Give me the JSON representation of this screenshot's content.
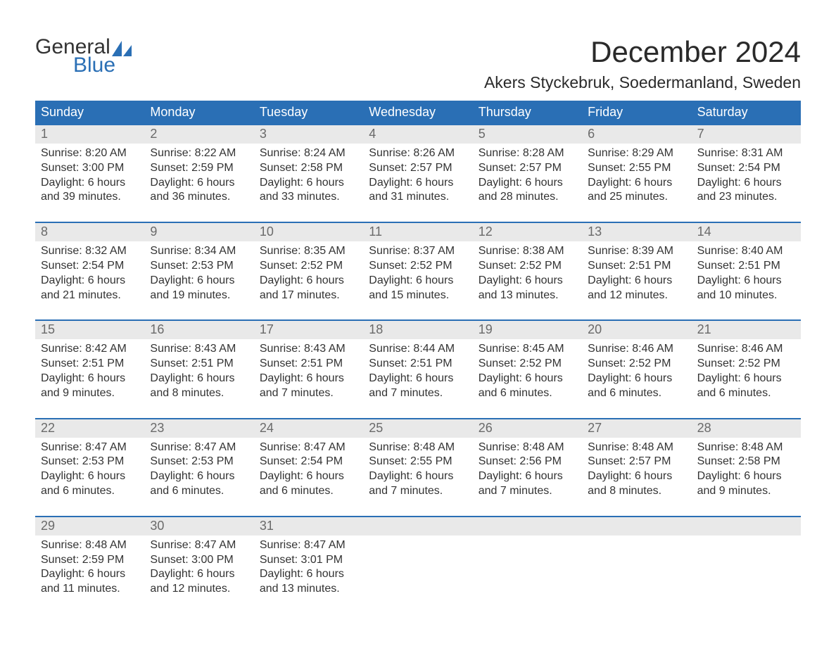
{
  "colors": {
    "header_blue": "#2a6fb5",
    "daynum_bg": "#e9e9e9",
    "text": "#333333",
    "daynum_text": "#6a6a6a",
    "background": "#ffffff"
  },
  "typography": {
    "month_title_fontsize": 42,
    "location_fontsize": 23,
    "weekday_fontsize": 18,
    "daynum_fontsize": 18,
    "body_fontsize": 16,
    "logo_fontsize": 30
  },
  "logo": {
    "word1": "General",
    "word2": "Blue"
  },
  "title": "December 2024",
  "location": "Akers Styckebruk, Soedermanland, Sweden",
  "weekdays": [
    "Sunday",
    "Monday",
    "Tuesday",
    "Wednesday",
    "Thursday",
    "Friday",
    "Saturday"
  ],
  "weeks": [
    [
      {
        "num": "1",
        "sunrise": "Sunrise: 8:20 AM",
        "sunset": "Sunset: 3:00 PM",
        "daylight1": "Daylight: 6 hours",
        "daylight2": "and 39 minutes."
      },
      {
        "num": "2",
        "sunrise": "Sunrise: 8:22 AM",
        "sunset": "Sunset: 2:59 PM",
        "daylight1": "Daylight: 6 hours",
        "daylight2": "and 36 minutes."
      },
      {
        "num": "3",
        "sunrise": "Sunrise: 8:24 AM",
        "sunset": "Sunset: 2:58 PM",
        "daylight1": "Daylight: 6 hours",
        "daylight2": "and 33 minutes."
      },
      {
        "num": "4",
        "sunrise": "Sunrise: 8:26 AM",
        "sunset": "Sunset: 2:57 PM",
        "daylight1": "Daylight: 6 hours",
        "daylight2": "and 31 minutes."
      },
      {
        "num": "5",
        "sunrise": "Sunrise: 8:28 AM",
        "sunset": "Sunset: 2:57 PM",
        "daylight1": "Daylight: 6 hours",
        "daylight2": "and 28 minutes."
      },
      {
        "num": "6",
        "sunrise": "Sunrise: 8:29 AM",
        "sunset": "Sunset: 2:55 PM",
        "daylight1": "Daylight: 6 hours",
        "daylight2": "and 25 minutes."
      },
      {
        "num": "7",
        "sunrise": "Sunrise: 8:31 AM",
        "sunset": "Sunset: 2:54 PM",
        "daylight1": "Daylight: 6 hours",
        "daylight2": "and 23 minutes."
      }
    ],
    [
      {
        "num": "8",
        "sunrise": "Sunrise: 8:32 AM",
        "sunset": "Sunset: 2:54 PM",
        "daylight1": "Daylight: 6 hours",
        "daylight2": "and 21 minutes."
      },
      {
        "num": "9",
        "sunrise": "Sunrise: 8:34 AM",
        "sunset": "Sunset: 2:53 PM",
        "daylight1": "Daylight: 6 hours",
        "daylight2": "and 19 minutes."
      },
      {
        "num": "10",
        "sunrise": "Sunrise: 8:35 AM",
        "sunset": "Sunset: 2:52 PM",
        "daylight1": "Daylight: 6 hours",
        "daylight2": "and 17 minutes."
      },
      {
        "num": "11",
        "sunrise": "Sunrise: 8:37 AM",
        "sunset": "Sunset: 2:52 PM",
        "daylight1": "Daylight: 6 hours",
        "daylight2": "and 15 minutes."
      },
      {
        "num": "12",
        "sunrise": "Sunrise: 8:38 AM",
        "sunset": "Sunset: 2:52 PM",
        "daylight1": "Daylight: 6 hours",
        "daylight2": "and 13 minutes."
      },
      {
        "num": "13",
        "sunrise": "Sunrise: 8:39 AM",
        "sunset": "Sunset: 2:51 PM",
        "daylight1": "Daylight: 6 hours",
        "daylight2": "and 12 minutes."
      },
      {
        "num": "14",
        "sunrise": "Sunrise: 8:40 AM",
        "sunset": "Sunset: 2:51 PM",
        "daylight1": "Daylight: 6 hours",
        "daylight2": "and 10 minutes."
      }
    ],
    [
      {
        "num": "15",
        "sunrise": "Sunrise: 8:42 AM",
        "sunset": "Sunset: 2:51 PM",
        "daylight1": "Daylight: 6 hours",
        "daylight2": "and 9 minutes."
      },
      {
        "num": "16",
        "sunrise": "Sunrise: 8:43 AM",
        "sunset": "Sunset: 2:51 PM",
        "daylight1": "Daylight: 6 hours",
        "daylight2": "and 8 minutes."
      },
      {
        "num": "17",
        "sunrise": "Sunrise: 8:43 AM",
        "sunset": "Sunset: 2:51 PM",
        "daylight1": "Daylight: 6 hours",
        "daylight2": "and 7 minutes."
      },
      {
        "num": "18",
        "sunrise": "Sunrise: 8:44 AM",
        "sunset": "Sunset: 2:51 PM",
        "daylight1": "Daylight: 6 hours",
        "daylight2": "and 7 minutes."
      },
      {
        "num": "19",
        "sunrise": "Sunrise: 8:45 AM",
        "sunset": "Sunset: 2:52 PM",
        "daylight1": "Daylight: 6 hours",
        "daylight2": "and 6 minutes."
      },
      {
        "num": "20",
        "sunrise": "Sunrise: 8:46 AM",
        "sunset": "Sunset: 2:52 PM",
        "daylight1": "Daylight: 6 hours",
        "daylight2": "and 6 minutes."
      },
      {
        "num": "21",
        "sunrise": "Sunrise: 8:46 AM",
        "sunset": "Sunset: 2:52 PM",
        "daylight1": "Daylight: 6 hours",
        "daylight2": "and 6 minutes."
      }
    ],
    [
      {
        "num": "22",
        "sunrise": "Sunrise: 8:47 AM",
        "sunset": "Sunset: 2:53 PM",
        "daylight1": "Daylight: 6 hours",
        "daylight2": "and 6 minutes."
      },
      {
        "num": "23",
        "sunrise": "Sunrise: 8:47 AM",
        "sunset": "Sunset: 2:53 PM",
        "daylight1": "Daylight: 6 hours",
        "daylight2": "and 6 minutes."
      },
      {
        "num": "24",
        "sunrise": "Sunrise: 8:47 AM",
        "sunset": "Sunset: 2:54 PM",
        "daylight1": "Daylight: 6 hours",
        "daylight2": "and 6 minutes."
      },
      {
        "num": "25",
        "sunrise": "Sunrise: 8:48 AM",
        "sunset": "Sunset: 2:55 PM",
        "daylight1": "Daylight: 6 hours",
        "daylight2": "and 7 minutes."
      },
      {
        "num": "26",
        "sunrise": "Sunrise: 8:48 AM",
        "sunset": "Sunset: 2:56 PM",
        "daylight1": "Daylight: 6 hours",
        "daylight2": "and 7 minutes."
      },
      {
        "num": "27",
        "sunrise": "Sunrise: 8:48 AM",
        "sunset": "Sunset: 2:57 PM",
        "daylight1": "Daylight: 6 hours",
        "daylight2": "and 8 minutes."
      },
      {
        "num": "28",
        "sunrise": "Sunrise: 8:48 AM",
        "sunset": "Sunset: 2:58 PM",
        "daylight1": "Daylight: 6 hours",
        "daylight2": "and 9 minutes."
      }
    ],
    [
      {
        "num": "29",
        "sunrise": "Sunrise: 8:48 AM",
        "sunset": "Sunset: 2:59 PM",
        "daylight1": "Daylight: 6 hours",
        "daylight2": "and 11 minutes."
      },
      {
        "num": "30",
        "sunrise": "Sunrise: 8:47 AM",
        "sunset": "Sunset: 3:00 PM",
        "daylight1": "Daylight: 6 hours",
        "daylight2": "and 12 minutes."
      },
      {
        "num": "31",
        "sunrise": "Sunrise: 8:47 AM",
        "sunset": "Sunset: 3:01 PM",
        "daylight1": "Daylight: 6 hours",
        "daylight2": "and 13 minutes."
      },
      {
        "empty": true
      },
      {
        "empty": true
      },
      {
        "empty": true
      },
      {
        "empty": true
      }
    ]
  ]
}
